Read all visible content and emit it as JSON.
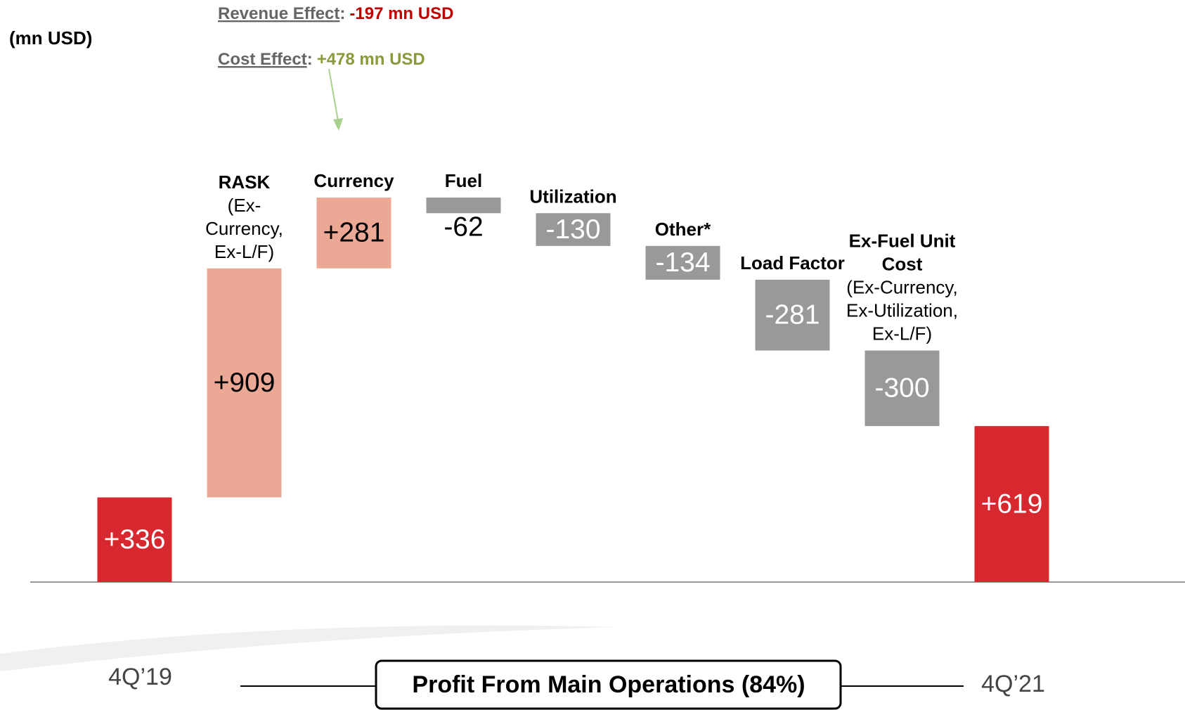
{
  "chart_data": {
    "type": "waterfall",
    "y_label": "(mn USD)",
    "categories": [
      "4Q’19",
      "RASK",
      "Currency",
      "Fuel",
      "Utilization",
      "Other*",
      "Load Factor",
      "Ex-Fuel Unit Cost",
      "4Q’21"
    ],
    "category_notes": [
      null,
      "(Ex- Currency, Ex-L/F)",
      null,
      null,
      null,
      null,
      null,
      "(Ex-Currency, Ex-Utilization, Ex-L/F)",
      null
    ],
    "values": [
      336,
      909,
      281,
      -62,
      -130,
      -134,
      -281,
      -300,
      619
    ],
    "value_labels": [
      "+336",
      "+909",
      "+281",
      "-62",
      "-130",
      "-134",
      "-281",
      "-300",
      "+619"
    ],
    "totals": [
      true,
      false,
      false,
      false,
      false,
      false,
      false,
      false,
      true
    ],
    "colors": [
      "#d7282f",
      "#eba895",
      "#eba895",
      "#999999",
      "#999999",
      "#999999",
      "#999999",
      "#999999",
      "#d7282f"
    ],
    "ylim": [
      0,
      1900
    ],
    "annotations": [
      {
        "label": "Revenue Effect",
        "separator": ":",
        "value": "-197 mn USD",
        "color": "#c00000"
      },
      {
        "label": "Cost Effect",
        "separator": ":",
        "value": "+478 mn USD",
        "color": "#8a9a3a"
      }
    ],
    "footer": "Profit From Main Operations (84%)"
  }
}
